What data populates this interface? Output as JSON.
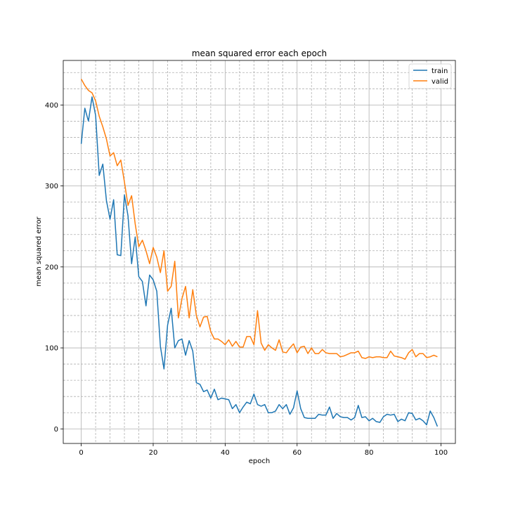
{
  "chart_data": {
    "type": "line",
    "title": "mean squared error each epoch",
    "xlabel": "epoch",
    "ylabel": "mean squared error",
    "xlim": [
      -5,
      104
    ],
    "ylim": [
      -18,
      455
    ],
    "xticks": [
      0,
      20,
      40,
      60,
      80,
      100
    ],
    "yticks": [
      0,
      100,
      200,
      300,
      400
    ],
    "grid": true,
    "legend_position": "top-right",
    "series": [
      {
        "name": "train",
        "color": "#1f77b4",
        "x": [
          0,
          1,
          2,
          3,
          4,
          5,
          6,
          7,
          8,
          9,
          10,
          11,
          12,
          13,
          14,
          15,
          16,
          17,
          18,
          19,
          20,
          21,
          22,
          23,
          24,
          25,
          26,
          27,
          28,
          29,
          30,
          31,
          32,
          33,
          34,
          35,
          36,
          37,
          38,
          39,
          40,
          41,
          42,
          43,
          44,
          45,
          46,
          47,
          48,
          49,
          50,
          51,
          52,
          53,
          54,
          55,
          56,
          57,
          58,
          59,
          60,
          61,
          62,
          63,
          64,
          65,
          66,
          67,
          68,
          69,
          70,
          71,
          72,
          73,
          74,
          75,
          76,
          77,
          78,
          79,
          80,
          81,
          82,
          83,
          84,
          85,
          86,
          87,
          88,
          89,
          90,
          91,
          92,
          93,
          94,
          95,
          96,
          97,
          98,
          99
        ],
        "values": [
          352,
          396,
          380,
          410,
          387,
          313,
          327,
          282,
          259,
          283,
          215,
          214,
          289,
          263,
          204,
          237,
          188,
          182,
          152,
          190,
          184,
          170,
          102,
          74,
          128,
          149,
          100,
          109,
          111,
          91,
          109,
          96,
          57,
          55,
          46,
          48,
          38,
          49,
          36,
          38,
          37,
          36,
          25,
          30,
          20,
          27,
          33,
          31,
          43,
          30,
          28,
          30,
          20,
          20,
          22,
          30,
          25,
          30,
          18,
          26,
          47,
          25,
          14,
          13,
          13,
          13,
          18,
          17,
          17,
          27,
          13,
          19,
          15,
          14,
          14,
          11,
          14,
          29,
          14,
          15,
          10,
          13,
          9,
          8,
          15,
          18,
          17,
          18,
          9,
          12,
          10,
          20,
          19,
          11,
          13,
          10,
          5,
          22,
          14,
          3
        ]
      },
      {
        "name": "valid",
        "color": "#ff7f0e",
        "x": [
          0,
          1,
          2,
          3,
          4,
          5,
          6,
          7,
          8,
          9,
          10,
          11,
          12,
          13,
          14,
          15,
          16,
          17,
          18,
          19,
          20,
          21,
          22,
          23,
          24,
          25,
          26,
          27,
          28,
          29,
          30,
          31,
          32,
          33,
          34,
          35,
          36,
          37,
          38,
          39,
          40,
          41,
          42,
          43,
          44,
          45,
          46,
          47,
          48,
          49,
          50,
          51,
          52,
          53,
          54,
          55,
          56,
          57,
          58,
          59,
          60,
          61,
          62,
          63,
          64,
          65,
          66,
          67,
          68,
          69,
          70,
          71,
          72,
          73,
          74,
          75,
          76,
          77,
          78,
          79,
          80,
          81,
          82,
          83,
          84,
          85,
          86,
          87,
          88,
          89,
          90,
          91,
          92,
          93,
          94,
          95,
          96,
          97,
          98,
          99
        ],
        "values": [
          432,
          424,
          418,
          415,
          405,
          386,
          373,
          358,
          337,
          341,
          325,
          332,
          305,
          276,
          288,
          253,
          225,
          233,
          220,
          204,
          224,
          212,
          193,
          220,
          170,
          176,
          207,
          137,
          161,
          176,
          137,
          172,
          140,
          126,
          138,
          139,
          120,
          111,
          111,
          108,
          104,
          110,
          102,
          108,
          101,
          101,
          114,
          114,
          104,
          146,
          106,
          97,
          104,
          100,
          97,
          110,
          95,
          94,
          100,
          105,
          94,
          101,
          102,
          93,
          100,
          93,
          93,
          98,
          94,
          93,
          93,
          93,
          89,
          90,
          92,
          94,
          94,
          96,
          88,
          87,
          89,
          88,
          89,
          89,
          88,
          88,
          96,
          90,
          89,
          88,
          86,
          94,
          98,
          89,
          93,
          93,
          88,
          89,
          91,
          89
        ]
      }
    ]
  }
}
